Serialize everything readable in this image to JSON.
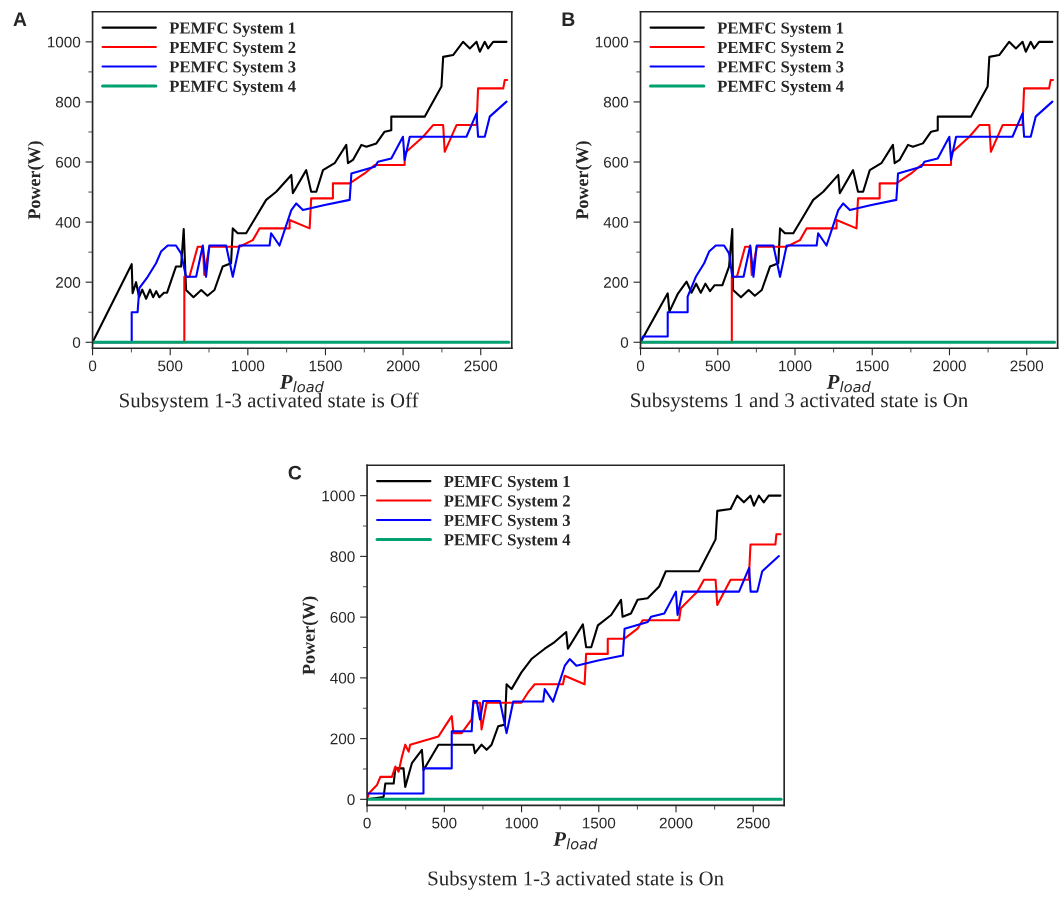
{
  "chart_data": [
    {
      "type": "line",
      "title": "A",
      "xlabel": "P$_{load}$",
      "ylabel": "Power(W)",
      "annotations": [
        "Subsystem 1-3 activated state is Off"
      ],
      "xlim": [
        0,
        2700
      ],
      "ylim": [
        -20,
        1100
      ],
      "xticks": [
        0,
        {
          "value": 250,
          "label": null
        },
        500,
        {
          "value": 750,
          "label": null
        },
        1000,
        {
          "value": 1250,
          "label": null
        },
        1500,
        {
          "value": 1750,
          "label": null
        },
        2000,
        {
          "value": 2250,
          "label": null
        },
        2500
      ],
      "yticks": [
        0,
        {
          "value": 100,
          "label": null
        },
        200,
        {
          "value": 300,
          "label": null
        },
        400,
        {
          "value": 500,
          "label": null
        },
        600,
        {
          "value": 700,
          "label": null
        },
        800,
        {
          "value": 900,
          "label": null
        },
        1000
      ],
      "legend": "top left",
      "series": [
        {
          "name": "PEMFC System 1",
          "color": "#000000",
          "x": [
            0,
            252,
            258,
            280,
            300,
            320,
            345,
            370,
            390,
            410,
            430,
            460,
            480,
            537,
            570,
            587,
            602,
            650,
            700,
            740,
            785,
            838,
            892,
            903,
            935,
            989,
            1053,
            1118,
            1183,
            1280,
            1290,
            1376,
            1408,
            1441,
            1484,
            1559,
            1634,
            1645,
            1677,
            1731,
            1763,
            1828,
            1881,
            1924,
            1924,
            2139,
            2247,
            2258,
            2322,
            2386,
            2430,
            2473,
            2494,
            2526,
            2548,
            2580,
            2666
          ],
          "values": [
            0,
            260,
            163,
            200,
            150,
            175,
            145,
            175,
            150,
            170,
            150,
            165,
            165,
            252,
            252,
            377,
            174,
            150,
            174,
            155,
            174,
            252,
            263,
            379,
            363,
            363,
            418,
            474,
            501,
            557,
            496,
            573,
            501,
            501,
            573,
            596,
            657,
            596,
            607,
            657,
            651,
            662,
            701,
            706,
            751,
            751,
            851,
            950,
            956,
            1000,
            978,
            1000,
            967,
            1000,
            978,
            1000,
            1000
          ]
        },
        {
          "name": "PEMFC System 2",
          "color": "#ff0000",
          "x": [
            0,
            591,
            591,
            624,
            677,
            710,
            720,
            752,
            946,
            1032,
            1075,
            1269,
            1269,
            1398,
            1408,
            1548,
            1548,
            1656,
            1752,
            1817,
            2010,
            2010,
            2129,
            2193,
            2258,
            2268,
            2344,
            2473,
            2483,
            2645,
            2655,
            2670
          ],
          "values": [
            0,
            0,
            218,
            218,
            318,
            318,
            224,
            318,
            318,
            340,
            379,
            379,
            407,
            379,
            479,
            479,
            529,
            529,
            562,
            590,
            590,
            629,
            684,
            723,
            723,
            634,
            723,
            723,
            845,
            845,
            873,
            873
          ]
        },
        {
          "name": "PEMFC System 3",
          "color": "#0000ff",
          "x": [
            0,
            252,
            252,
            290,
            301,
            355,
            409,
            441,
            484,
            537,
            570,
            602,
            667,
            710,
            731,
            752,
            860,
            903,
            946,
            1140,
            1150,
            1204,
            1280,
            1312,
            1355,
            1495,
            1656,
            1667,
            1817,
            1838,
            1924,
            1999,
            2010,
            2043,
            2408,
            2473,
            2483,
            2526,
            2558,
            2666
          ],
          "values": [
            0,
            0,
            100,
            100,
            180,
            218,
            263,
            302,
            322,
            322,
            296,
            218,
            218,
            322,
            218,
            322,
            322,
            218,
            322,
            322,
            363,
            322,
            440,
            462,
            440,
            457,
            474,
            562,
            584,
            601,
            612,
            684,
            607,
            684,
            684,
            762,
            684,
            684,
            751,
            801
          ]
        },
        {
          "name": "PEMFC System 4",
          "color": "#00a070",
          "x": [
            0,
            2680
          ],
          "values": [
            0,
            0
          ]
        }
      ]
    },
    {
      "type": "line",
      "title": "B",
      "xlabel": "P$_{load}$",
      "ylabel": "Power(W)",
      "annotations": [
        "Subsystems 1 and 3 activated state is On"
      ],
      "xlim": [
        0,
        2700
      ],
      "ylim": [
        -20,
        1100
      ],
      "xticks": [
        0,
        {
          "value": 250,
          "label": null
        },
        500,
        {
          "value": 750,
          "label": null
        },
        1000,
        {
          "value": 1250,
          "label": null
        },
        1500,
        {
          "value": 1750,
          "label": null
        },
        2000,
        {
          "value": 2250,
          "label": null
        },
        2500
      ],
      "yticks": [
        0,
        {
          "value": 100,
          "label": null
        },
        200,
        {
          "value": 300,
          "label": null
        },
        400,
        {
          "value": 500,
          "label": null
        },
        600,
        {
          "value": 700,
          "label": null
        },
        800,
        {
          "value": 900,
          "label": null
        },
        1000
      ],
      "legend": "top left",
      "series": [
        {
          "name": "PEMFC System 1",
          "color": "#000000",
          "x": [
            0,
            176,
            187,
            240,
            298,
            330,
            360,
            390,
            420,
            450,
            480,
            530,
            573,
            594,
            599,
            650,
            700,
            740,
            785,
            838,
            892,
            903,
            935,
            989,
            1053,
            1118,
            1183,
            1280,
            1290,
            1376,
            1408,
            1441,
            1484,
            1559,
            1634,
            1645,
            1677,
            1731,
            1763,
            1828,
            1881,
            1924,
            1924,
            2139,
            2247,
            2258,
            2322,
            2386,
            2430,
            2473,
            2494,
            2526,
            2548,
            2580,
            2666
          ],
          "values": [
            0,
            163,
            102,
            160,
            202,
            165,
            195,
            165,
            195,
            170,
            190,
            190,
            252,
            377,
            174,
            150,
            174,
            155,
            174,
            252,
            263,
            379,
            363,
            363,
            418,
            474,
            501,
            557,
            496,
            573,
            501,
            501,
            573,
            596,
            657,
            596,
            607,
            657,
            651,
            662,
            701,
            706,
            751,
            751,
            851,
            950,
            956,
            1000,
            978,
            1000,
            967,
            1000,
            978,
            1000,
            1000
          ]
        },
        {
          "name": "PEMFC System 2",
          "color": "#ff0000",
          "x": [
            0,
            591,
            591,
            624,
            677,
            710,
            720,
            752,
            946,
            1032,
            1075,
            1269,
            1269,
            1398,
            1408,
            1548,
            1548,
            1656,
            1752,
            1817,
            2010,
            2010,
            2129,
            2193,
            2258,
            2268,
            2344,
            2473,
            2483,
            2645,
            2655,
            2670
          ],
          "values": [
            0,
            0,
            218,
            218,
            318,
            318,
            224,
            318,
            318,
            340,
            379,
            379,
            407,
            379,
            479,
            479,
            529,
            529,
            562,
            590,
            590,
            629,
            684,
            723,
            723,
            634,
            723,
            723,
            845,
            845,
            873,
            873
          ]
        },
        {
          "name": "PEMFC System 3",
          "color": "#0000ff",
          "x": [
            0,
            15,
            176,
            176,
            305,
            305,
            358,
            412,
            444,
            487,
            541,
            573,
            594,
            667,
            710,
            731,
            752,
            860,
            903,
            946,
            1140,
            1150,
            1204,
            1280,
            1312,
            1355,
            1495,
            1656,
            1667,
            1817,
            1838,
            1924,
            1999,
            2010,
            2043,
            2408,
            2473,
            2483,
            2526,
            2558,
            2666
          ],
          "values": [
            0,
            19,
            19,
            100,
            100,
            152,
            218,
            263,
            302,
            322,
            322,
            296,
            218,
            218,
            322,
            218,
            322,
            322,
            218,
            322,
            322,
            363,
            322,
            440,
            462,
            440,
            457,
            474,
            562,
            584,
            601,
            612,
            684,
            607,
            684,
            684,
            762,
            684,
            684,
            751,
            801
          ]
        },
        {
          "name": "PEMFC System 4",
          "color": "#00a070",
          "x": [
            0,
            2680
          ],
          "values": [
            0,
            0
          ]
        }
      ]
    },
    {
      "type": "line",
      "title": "C",
      "xlabel": "P$_{load}$",
      "ylabel": "Power(W)",
      "annotations": [
        "Subsystem 1-3 activated state is On"
      ],
      "xlim": [
        0,
        2700
      ],
      "ylim": [
        -20,
        1100
      ],
      "xticks": [
        0,
        {
          "value": 250,
          "label": null
        },
        500,
        {
          "value": 750,
          "label": null
        },
        1000,
        {
          "value": 1250,
          "label": null
        },
        1500,
        {
          "value": 1750,
          "label": null
        },
        2000,
        {
          "value": 2250,
          "label": null
        },
        2500
      ],
      "yticks": [
        0,
        {
          "value": 100,
          "label": null
        },
        200,
        {
          "value": 300,
          "label": null
        },
        400,
        {
          "value": 500,
          "label": null
        },
        600,
        {
          "value": 700,
          "label": null
        },
        800,
        {
          "value": 900,
          "label": null
        },
        1000
      ],
      "legend": "top left",
      "series": [
        {
          "name": "PEMFC System 1",
          "color": "#000000",
          "x": [
            0,
            107,
            118,
            172,
            183,
            236,
            247,
            290,
            355,
            365,
            462,
            570,
            688,
            698,
            741,
            774,
            806,
            849,
            892,
            903,
            935,
            999,
            1064,
            1150,
            1214,
            1289,
            1300,
            1397,
            1418,
            1451,
            1494,
            1580,
            1644,
            1654,
            1708,
            1751,
            1816,
            1891,
            1934,
            2149,
            2256,
            2267,
            2353,
            2396,
            2439,
            2482,
            2504,
            2536,
            2568,
            2600,
            2676
          ],
          "values": [
            0,
            8,
            52,
            52,
            102,
            102,
            41,
            119,
            163,
            96,
            180,
            180,
            180,
            152,
            180,
            163,
            180,
            241,
            246,
            379,
            363,
            418,
            462,
            496,
            518,
            551,
            496,
            576,
            501,
            501,
            573,
            607,
            657,
            601,
            612,
            657,
            662,
            701,
            751,
            751,
            856,
            950,
            956,
            1000,
            978,
            1000,
            967,
            1000,
            978,
            1000,
            1000
          ]
        },
        {
          "name": "PEMFC System 2",
          "color": "#ff0000",
          "x": [
            0,
            11,
            64,
            86,
            161,
            183,
            204,
            226,
            247,
            269,
            279,
            462,
            505,
            548,
            559,
            612,
            677,
            688,
            731,
            741,
            774,
            999,
            1042,
            1085,
            1268,
            1279,
            1408,
            1418,
            1558,
            1558,
            1666,
            1751,
            1784,
            2020,
            2031,
            2138,
            2181,
            2256,
            2267,
            2353,
            2471,
            2482,
            2643,
            2650,
            2676
          ],
          "values": [
            0,
            19,
            47,
            74,
            74,
            108,
            91,
            141,
            180,
            157,
            180,
            207,
            241,
            274,
            218,
            218,
            263,
            318,
            318,
            230,
            318,
            318,
            352,
            379,
            379,
            407,
            379,
            479,
            479,
            529,
            529,
            562,
            590,
            590,
            629,
            684,
            723,
            723,
            640,
            723,
            723,
            839,
            839,
            873,
            873
          ]
        },
        {
          "name": "PEMFC System 3",
          "color": "#0000ff",
          "x": [
            0,
            365,
            365,
            548,
            548,
            677,
            688,
            710,
            731,
            752,
            860,
            903,
            946,
            1140,
            1150,
            1204,
            1280,
            1312,
            1355,
            1495,
            1656,
            1667,
            1817,
            1838,
            1924,
            1999,
            2010,
            2043,
            2408,
            2473,
            2483,
            2526,
            2558,
            2666
          ],
          "values": [
            19,
            19,
            102,
            102,
            224,
            224,
            324,
            324,
            263,
            324,
            324,
            218,
            322,
            322,
            363,
            322,
            440,
            462,
            440,
            457,
            474,
            562,
            584,
            601,
            612,
            684,
            607,
            684,
            684,
            762,
            684,
            684,
            751,
            801
          ]
        },
        {
          "name": "PEMFC System 4",
          "color": "#00a070",
          "x": [
            0,
            2680
          ],
          "values": [
            0,
            0
          ]
        }
      ]
    }
  ]
}
